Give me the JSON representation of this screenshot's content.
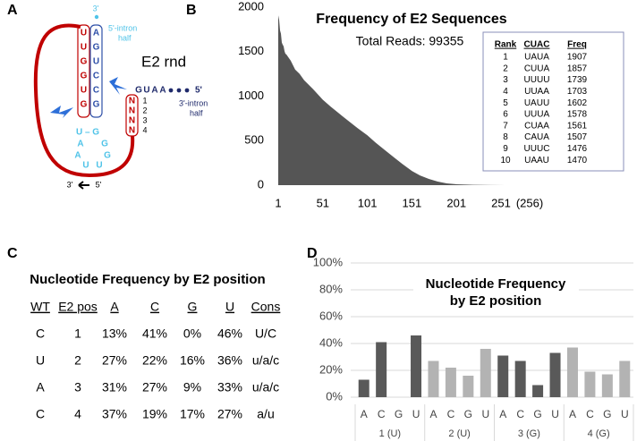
{
  "panel_labels": [
    "A",
    "B",
    "C",
    "D"
  ],
  "diagram": {
    "top_end": "3'",
    "intron5": [
      "5'-intron",
      "half"
    ],
    "name": "E2 rnd",
    "left_stem": [
      "U",
      "U",
      "G",
      "G",
      "U",
      "G"
    ],
    "right_stem": [
      "A",
      "G",
      "U",
      "C",
      "C",
      "G"
    ],
    "tail": [
      "G",
      "U",
      "A",
      "A"
    ],
    "tail_end": "5'",
    "intron3": [
      "3'-intron",
      "half"
    ],
    "loop_pair": "U – G",
    "loop_letters": [
      "A",
      "A",
      "G",
      "G",
      "U",
      "U"
    ],
    "n_box": [
      "N",
      "N",
      "N",
      "N"
    ],
    "n_numbers": [
      "1",
      "2",
      "3",
      "4"
    ],
    "bottom": [
      "3'",
      "5'"
    ]
  },
  "chart_data": [
    {
      "type": "area",
      "title": "Frequency of E2 Sequences",
      "annotation": "Total Reads: 99355",
      "x": [
        1,
        2,
        3,
        4,
        5,
        6,
        7,
        8,
        9,
        10,
        15,
        20,
        25,
        30,
        40,
        51,
        60,
        70,
        80,
        90,
        101,
        110,
        120,
        130,
        140,
        151,
        160,
        170,
        180,
        190,
        201,
        220,
        240,
        256
      ],
      "values": [
        1907,
        1857,
        1739,
        1703,
        1602,
        1578,
        1561,
        1507,
        1476,
        1470,
        1400,
        1300,
        1250,
        1180,
        1080,
        960,
        880,
        800,
        720,
        640,
        560,
        480,
        400,
        320,
        240,
        160,
        110,
        70,
        40,
        20,
        10,
        4,
        1,
        0
      ],
      "color": "#555555",
      "xlim": [
        1,
        256
      ],
      "ylim": [
        0,
        2000
      ],
      "xticks": [
        1,
        51,
        101,
        151,
        201,
        251
      ],
      "x_end_label": "(256)",
      "yticks": [
        0,
        500,
        1000,
        1500,
        2000
      ],
      "inset_table": {
        "header": [
          "Rank",
          "CUAC",
          "Freq"
        ],
        "rows": [
          [
            1,
            "UAUA",
            1907
          ],
          [
            2,
            "CUUA",
            1857
          ],
          [
            3,
            "UUUU",
            1739
          ],
          [
            4,
            "UUAA",
            1703
          ],
          [
            5,
            "UAUU",
            1602
          ],
          [
            6,
            "UUUA",
            1578
          ],
          [
            7,
            "CUAA",
            1561
          ],
          [
            8,
            "CAUA",
            1507
          ],
          [
            9,
            "UUUC",
            1476
          ],
          [
            10,
            "UAAU",
            1470
          ]
        ]
      }
    },
    {
      "type": "bar",
      "title": [
        "Nucleotide Frequency",
        "by E2 position"
      ],
      "categories": [
        "A",
        "C",
        "G",
        "U",
        "A",
        "C",
        "G",
        "U",
        "A",
        "C",
        "G",
        "U",
        "A",
        "C",
        "G",
        "U"
      ],
      "groups": [
        "1 (U)",
        "2 (U)",
        "3 (G)",
        "4 (G)"
      ],
      "values": [
        13,
        41,
        0,
        46,
        27,
        22,
        16,
        36,
        31,
        27,
        9,
        33,
        37,
        19,
        17,
        27
      ],
      "colors": [
        "#595959",
        "#595959",
        "#595959",
        "#595959",
        "#b3b3b3",
        "#b3b3b3",
        "#b3b3b3",
        "#b3b3b3",
        "#595959",
        "#595959",
        "#595959",
        "#595959",
        "#b3b3b3",
        "#b3b3b3",
        "#b3b3b3",
        "#b3b3b3"
      ],
      "ylim": [
        0,
        100
      ],
      "yticks": [
        {
          "value": 0,
          "label": "0%"
        },
        {
          "value": 20,
          "label": "20%"
        },
        {
          "value": 40,
          "label": "40%"
        },
        {
          "value": 60,
          "label": "60%"
        },
        {
          "value": 80,
          "label": "80%"
        },
        {
          "value": 100,
          "label": "100%"
        }
      ],
      "grid": true
    }
  ],
  "table": {
    "title": "Nucleotide Frequency by E2 position",
    "header": [
      "WT",
      "E2 pos",
      "A",
      "C",
      "G",
      "U",
      "Cons"
    ],
    "rows": [
      [
        "C",
        "1",
        "13%",
        "41%",
        "0%",
        "46%",
        "U/C"
      ],
      [
        "U",
        "2",
        "27%",
        "22%",
        "16%",
        "36%",
        "u/a/c"
      ],
      [
        "A",
        "3",
        "31%",
        "27%",
        "9%",
        "33%",
        "u/a/c"
      ],
      [
        "C",
        "4",
        "37%",
        "19%",
        "17%",
        "27%",
        "a/u"
      ]
    ]
  }
}
